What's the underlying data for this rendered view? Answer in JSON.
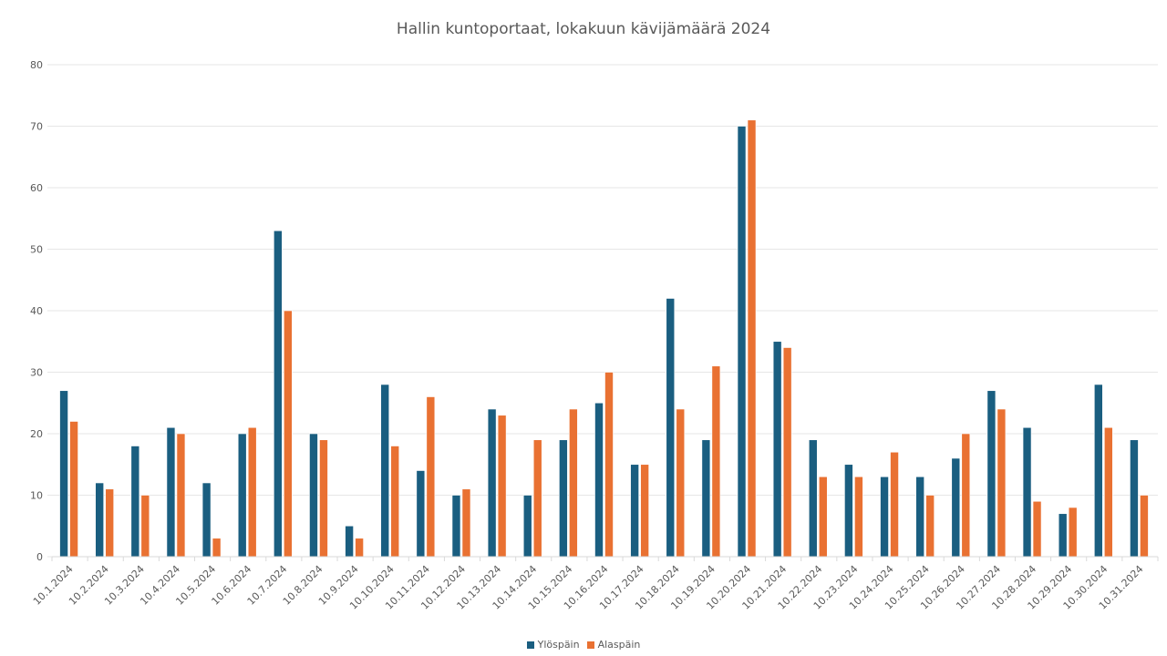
{
  "chart_data": {
    "type": "bar",
    "title": "Hallin kuntoportaat, lokakuun kävijämäärä 2024",
    "xlabel": "",
    "ylabel": "",
    "ylim": [
      0,
      80
    ],
    "yticks": [
      0,
      10,
      20,
      30,
      40,
      50,
      60,
      70,
      80
    ],
    "grid": true,
    "legend_position": "bottom",
    "categories": [
      "10.1.2024",
      "10.2.2024",
      "10.3.2024",
      "10.4.2024",
      "10.5.2024",
      "10.6.2024",
      "10.7.2024",
      "10.8.2024",
      "10.9.2024",
      "10.10.2024",
      "10.11.2024",
      "10.12.2024",
      "10.13.2024",
      "10.14.2024",
      "10.15.2024",
      "10.16.2024",
      "10.17.2024",
      "10.18.2024",
      "10.19.2024",
      "10.20.2024",
      "10.21.2024",
      "10.22.2024",
      "10.23.2024",
      "10.24.2024",
      "10.25.2024",
      "10.26.2024",
      "10.27.2024",
      "10.28.2024",
      "10.29.2024",
      "10.30.2024",
      "10.31.2024"
    ],
    "series": [
      {
        "name": "Ylöspäin",
        "color": "#1a5e80",
        "values": [
          27,
          12,
          18,
          21,
          12,
          20,
          53,
          20,
          5,
          28,
          14,
          10,
          24,
          10,
          19,
          25,
          15,
          42,
          19,
          70,
          35,
          19,
          15,
          13,
          13,
          16,
          27,
          21,
          7,
          28,
          19
        ]
      },
      {
        "name": "Alaspäin",
        "color": "#e97132",
        "values": [
          22,
          11,
          10,
          20,
          3,
          21,
          40,
          19,
          3,
          18,
          26,
          11,
          23,
          19,
          24,
          30,
          15,
          24,
          31,
          71,
          34,
          13,
          13,
          17,
          10,
          20,
          24,
          9,
          8,
          21,
          10
        ]
      }
    ]
  },
  "legend": {
    "items": [
      {
        "label": "Ylöspäin",
        "color": "#1a5e80"
      },
      {
        "label": "Alaspäin",
        "color": "#e97132"
      }
    ]
  },
  "colors": {
    "grid": "#e6e6e6",
    "axis_text": "#595959",
    "title": "#595959"
  }
}
